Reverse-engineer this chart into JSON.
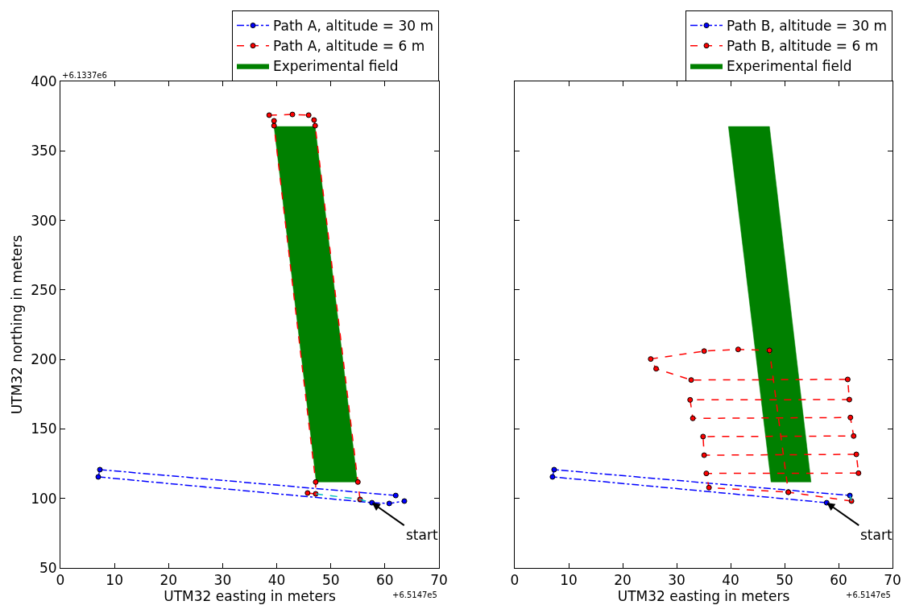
{
  "chart_data": [
    {
      "type": "line",
      "xlabel": "UTM32 easting in meters",
      "ylabel": "UTM32 northing in meters",
      "xlim": [
        0,
        70
      ],
      "xticks": [
        0,
        10,
        20,
        30,
        40,
        50,
        60,
        70
      ],
      "ylim": [
        50,
        400
      ],
      "yticks": [
        50,
        100,
        150,
        200,
        250,
        300,
        350,
        400
      ],
      "grid": false,
      "legend": "top right",
      "annotations": [
        "+6.1337e6",
        "+6.5147e5",
        {
          "text": "start",
          "x": 57.6,
          "y": 96.9
        }
      ],
      "series": [
        {
          "name": "Path A, altitude = 30 m",
          "color": "#0000ff",
          "marker": "circle",
          "line_style": "dashdot",
          "x": [
            62.0,
            7.3,
            7.0,
            57.6,
            60.8,
            63.6
          ],
          "values": [
            102.1,
            120.7,
            115.5,
            96.9,
            96.4,
            98.1
          ]
        },
        {
          "name": "Path A, altitude = 6 m",
          "color": "#ff0000",
          "marker": "circle",
          "line_style": "dashed",
          "x": [
            45.7,
            47.2,
            47.2,
            39.5,
            39.5,
            38.6,
            42.9,
            45.9,
            46.9,
            47.1,
            55.0,
            55.4
          ],
          "values": [
            103.9,
            103.3,
            111.8,
            368.1,
            371.6,
            375.7,
            376.2,
            375.7,
            372.2,
            368.1,
            111.8,
            99.3
          ]
        },
        {
          "type": "area",
          "name": "Experimental field",
          "color": "#008000",
          "marker": "none",
          "line_style": "solid",
          "x": [
            39.5,
            47.1,
            54.9,
            47.3,
            39.5
          ],
          "values": [
            367.5,
            367.5,
            111.8,
            111.8,
            367.5
          ]
        },
        {
          "color": "#00bfbf",
          "marker": "none",
          "line_style": "dashed",
          "x": [
            47.2,
            55.4,
            57.6
          ],
          "values": [
            103.3,
            99.3,
            96.9
          ]
        }
      ]
    },
    {
      "type": "line",
      "xlabel": "UTM32 easting in meters",
      "xlim": [
        0,
        70
      ],
      "xticks": [
        0,
        10,
        20,
        30,
        40,
        50,
        60,
        70
      ],
      "ylim": [
        50,
        400
      ],
      "yticks": [
        50,
        100,
        150,
        200,
        250,
        300,
        350,
        400
      ],
      "tick_labels": "x",
      "grid": false,
      "legend": "top right",
      "annotations": [
        "+6.5147e5",
        {
          "text": "start",
          "x": 57.8,
          "y": 96.9
        }
      ],
      "series": [
        {
          "name": "Path B, altitude = 30 m",
          "color": "#0000ff",
          "marker": "circle",
          "line_style": "dashdot",
          "x": [
            57.8,
            7.0,
            7.3,
            62.1
          ],
          "values": [
            96.9,
            115.5,
            120.7,
            102.1
          ]
        },
        {
          "name": "Path B, altitude = 6 m",
          "color": "#ff0000",
          "marker": "circle",
          "line_style": "dashed",
          "x": [
            62.4,
            50.7,
            47.2,
            41.4,
            35.1,
            25.2,
            26.2,
            32.7,
            61.7,
            62.0,
            32.5,
            33.0,
            62.2,
            62.8,
            34.9,
            35.1,
            63.3,
            63.7,
            35.5,
            36.0,
            50.7
          ],
          "values": [
            98.1,
            104.5,
            206.5,
            207.2,
            206.0,
            200.3,
            193.3,
            185.2,
            185.6,
            171.1,
            170.9,
            157.6,
            158.2,
            144.9,
            144.5,
            131.1,
            131.7,
            118.2,
            118.0,
            107.8,
            104.5
          ]
        },
        {
          "type": "area",
          "name": "Experimental field",
          "color": "#008000",
          "marker": "none",
          "line_style": "solid",
          "x": [
            39.6,
            47.2,
            54.9,
            47.5,
            39.6
          ],
          "values": [
            367.5,
            367.5,
            111.8,
            111.8,
            367.5
          ]
        },
        {
          "color": "#00bfbf",
          "marker": "none",
          "line_style": "dashed",
          "x": [
            62.1,
            62.4
          ],
          "values": [
            102.1,
            98.1
          ]
        }
      ]
    }
  ]
}
